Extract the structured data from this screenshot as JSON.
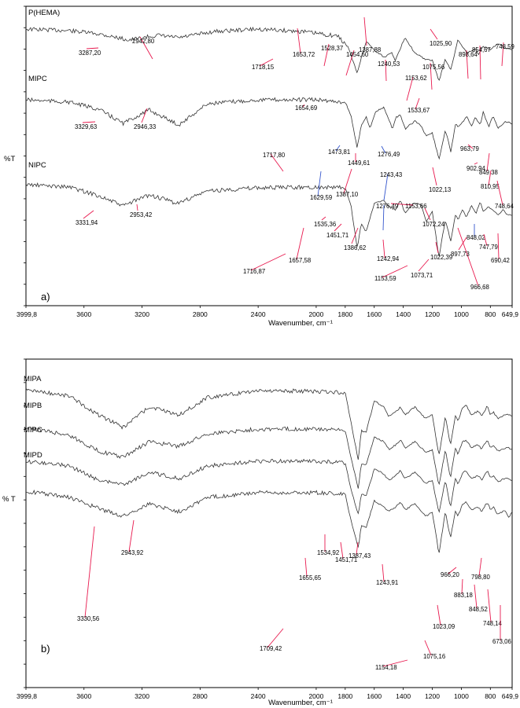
{
  "chart_data": [
    {
      "panel_id": "a",
      "panel_label": "a)",
      "type": "line",
      "xlabel": "Wavenumber, cm⁻¹",
      "ylabel": "%T",
      "x_reversed": true,
      "xlim": [
        3999.8,
        649.9
      ],
      "x_ticks": [
        "3999,8",
        "3600",
        "3200",
        "2800",
        "2400",
        "2000",
        "1800",
        "1600",
        "1400",
        "1200",
        "1000",
        "800",
        "649,9"
      ],
      "x_tick_values": [
        3999.8,
        3600,
        3200,
        2800,
        2400,
        2000,
        1800,
        1600,
        1400,
        1200,
        1000,
        800,
        649.9
      ],
      "series": [
        {
          "name": "P(HEMA)",
          "x": [
            3999.8,
            3700,
            3500,
            3287.2,
            3100,
            2942.8,
            2700,
            2400,
            2100,
            1850,
            1780,
            1718.15,
            1690,
            1653.72,
            1600,
            1528.37,
            1480,
            1454.6,
            1420,
            1387.88,
            1320,
            1240.53,
            1200,
            1153.62,
            1110,
            1075.56,
            1050,
            1025.9,
            960,
            898.64,
            880,
            854.67,
            800,
            748.59,
            700,
            649.9
          ],
          "y": [
            4,
            6,
            10,
            18,
            12,
            15,
            7,
            4,
            7,
            13,
            27,
            60,
            41,
            19,
            31,
            40,
            33,
            44,
            29,
            14,
            35,
            43,
            44,
            70,
            42,
            56,
            40,
            18,
            34,
            30,
            37,
            26,
            30,
            22,
            28,
            30
          ]
        },
        {
          "name": "MIPC",
          "x": [
            3999.8,
            3700,
            3500,
            3329.63,
            3150,
            2946.33,
            2750,
            2400,
            2000,
            1800,
            1760,
            1717.8,
            1690,
            1654.69,
            1629.59,
            1590,
            1533.67,
            1473.81,
            1449.61,
            1420,
            1387.1,
            1320,
            1276.49,
            1243.43,
            1200,
            1153.66,
            1110,
            1072.24,
            1040,
            1022.13,
            990,
            963.79,
            930,
            902.94,
            870,
            849.38,
            820,
            810.95,
            780,
            748.64,
            700,
            649.9
          ],
          "y": [
            10,
            13,
            22,
            40,
            23,
            42,
            15,
            10,
            10,
            13,
            30,
            72,
            42,
            32,
            46,
            25,
            20,
            47,
            32,
            30,
            47,
            37,
            43,
            56,
            52,
            86,
            48,
            76,
            40,
            44,
            38,
            30,
            44,
            32,
            42,
            26,
            40,
            44,
            30,
            47,
            38,
            40
          ]
        },
        {
          "name": "NIPC",
          "x": [
            3999.8,
            3700,
            3500,
            3331.94,
            3150,
            2953.42,
            2750,
            2400,
            2000,
            1800,
            1760,
            1716.87,
            1690,
            1657.58,
            1600,
            1535.36,
            1500,
            1451.71,
            1420,
            1386.62,
            1330,
            1276.49,
            1242.94,
            1200,
            1153.59,
            1110,
            1073.71,
            1040,
            1022.39,
            990,
            966.68,
            930,
            897.73,
            870,
            848.02,
            810,
            747.79,
            710,
            690.42,
            649.9
          ],
          "y": [
            8,
            11,
            22,
            35,
            21,
            32,
            16,
            12,
            11,
            12,
            35,
            90,
            57,
            68,
            32,
            28,
            36,
            40,
            28,
            45,
            32,
            33,
            55,
            42,
            100,
            52,
            80,
            46,
            53,
            40,
            50,
            35,
            44,
            30,
            42,
            36,
            46,
            40,
            45,
            48
          ]
        }
      ],
      "peak_labels": [
        {
          "text": "3287,20"
        },
        {
          "text": "2942,80"
        },
        {
          "text": "1718,15"
        },
        {
          "text": "1653,72"
        },
        {
          "text": "1528,37"
        },
        {
          "text": "1454,60"
        },
        {
          "text": "1387,88"
        },
        {
          "text": "1240,53"
        },
        {
          "text": "1153,62"
        },
        {
          "text": "1075,56"
        },
        {
          "text": "1025,90"
        },
        {
          "text": "898,64"
        },
        {
          "text": "854,67"
        },
        {
          "text": "748,59"
        },
        {
          "text": "3329,63"
        },
        {
          "text": "2946,33"
        },
        {
          "text": "1717,80"
        },
        {
          "text": "1654,69"
        },
        {
          "text": "1629,59"
        },
        {
          "text": "1533,67"
        },
        {
          "text": "1473,81"
        },
        {
          "text": "1449,61"
        },
        {
          "text": "1387,10"
        },
        {
          "text": "1276,49"
        },
        {
          "text": "1243,43"
        },
        {
          "text": "1153,66"
        },
        {
          "text": "1072,24"
        },
        {
          "text": "1022,13"
        },
        {
          "text": "963,79"
        },
        {
          "text": "902,94"
        },
        {
          "text": "849,38"
        },
        {
          "text": "810,95"
        },
        {
          "text": "748,64"
        },
        {
          "text": "3331,94"
        },
        {
          "text": "2953,42"
        },
        {
          "text": "1716,87"
        },
        {
          "text": "1657,58"
        },
        {
          "text": "1535,36"
        },
        {
          "text": "1451,71"
        },
        {
          "text": "1386,62"
        },
        {
          "text": "1276,49"
        },
        {
          "text": "1242,94"
        },
        {
          "text": "1153,59"
        },
        {
          "text": "1073,71"
        },
        {
          "text": "1022,39"
        },
        {
          "text": "966,68"
        },
        {
          "text": "897,73"
        },
        {
          "text": "848,02"
        },
        {
          "text": "747,79"
        },
        {
          "text": "690,42"
        }
      ]
    },
    {
      "panel_id": "b",
      "panel_label": "b)",
      "type": "line",
      "xlabel": "Wavenumber, cm⁻¹",
      "ylabel": "% T",
      "x_reversed": true,
      "xlim": [
        3999.8,
        649.9
      ],
      "x_ticks": [
        "3999,8",
        "3600",
        "3200",
        "2800",
        "2400",
        "2000",
        "1800",
        "1600",
        "1400",
        "1200",
        "1000",
        "800",
        "649,9"
      ],
      "x_tick_values": [
        3999.8,
        3600,
        3200,
        2800,
        2400,
        2000,
        1800,
        1600,
        1400,
        1200,
        1000,
        800,
        649.9
      ],
      "series": [
        {
          "name": "MIPA",
          "x": [
            3999.8,
            3700,
            3500,
            3330.56,
            3150,
            2943.92,
            2750,
            2400,
            2000,
            1800,
            1760,
            1709.42,
            1690,
            1655.65,
            1600,
            1534.92,
            1500,
            1451.71,
            1420,
            1387.43,
            1320,
            1243.91,
            1200,
            1154.18,
            1110,
            1075.16,
            1040,
            1023.09,
            990,
            966.2,
            930,
            883.18,
            860,
            848.52,
            820,
            798.8,
            780,
            748.14,
            700,
            673.06,
            649.9
          ],
          "y": [
            8,
            16,
            40,
            56,
            30,
            40,
            18,
            9,
            10,
            12,
            50,
            98,
            60,
            62,
            22,
            30,
            42,
            36,
            30,
            40,
            30,
            45,
            40,
            92,
            42,
            78,
            40,
            48,
            30,
            28,
            40,
            35,
            42,
            38,
            28,
            40,
            36,
            45,
            40,
            40,
            42
          ]
        },
        {
          "name": "MIPB",
          "x": [
            3999.8,
            3700,
            3500,
            3330.56,
            3150,
            2943.92,
            2750,
            2400,
            2000,
            1800,
            1760,
            1709.42,
            1690,
            1655.65,
            1600,
            1534.92,
            1500,
            1451.71,
            1420,
            1387.43,
            1320,
            1243.91,
            1200,
            1154.18,
            1110,
            1075.16,
            1040,
            1023.09,
            990,
            966.2,
            930,
            883.18,
            860,
            848.52,
            820,
            798.8,
            780,
            748.14,
            700,
            673.06,
            649.9
          ],
          "y": [
            22,
            32,
            52,
            60,
            40,
            46,
            30,
            24,
            24,
            26,
            60,
            100,
            68,
            70,
            34,
            40,
            50,
            44,
            38,
            48,
            40,
            54,
            50,
            96,
            50,
            86,
            48,
            56,
            40,
            38,
            48,
            44,
            50,
            46,
            38,
            48,
            44,
            52,
            48,
            48,
            50
          ]
        },
        {
          "name": "MIPC",
          "x": [
            3999.8,
            3700,
            3500,
            3330.56,
            3150,
            2943.92,
            2750,
            2400,
            2000,
            1800,
            1760,
            1709.42,
            1690,
            1655.65,
            1600,
            1534.92,
            1500,
            1451.71,
            1420,
            1387.43,
            1320,
            1243.91,
            1200,
            1154.18,
            1110,
            1075.16,
            1040,
            1023.09,
            990,
            966.2,
            930,
            883.18,
            860,
            848.52,
            820,
            798.8,
            780,
            748.14,
            700,
            673.06,
            649.9
          ],
          "y": [
            34,
            40,
            58,
            64,
            48,
            56,
            40,
            34,
            34,
            36,
            70,
            102,
            76,
            78,
            44,
            50,
            58,
            52,
            46,
            56,
            48,
            62,
            58,
            100,
            58,
            92,
            56,
            64,
            48,
            46,
            56,
            52,
            58,
            54,
            46,
            56,
            52,
            60,
            56,
            56,
            58
          ]
        },
        {
          "name": "MIPD",
          "x": [
            3999.8,
            3700,
            3500,
            3330.56,
            3150,
            2943.92,
            2750,
            2400,
            2000,
            1800,
            1760,
            1709.42,
            1690,
            1655.65,
            1600,
            1534.92,
            1500,
            1451.71,
            1420,
            1387.43,
            1320,
            1243.91,
            1200,
            1154.18,
            1110,
            1075.16,
            1040,
            1023.09,
            990,
            966.2,
            930,
            883.18,
            860,
            848.52,
            820,
            798.8,
            780,
            748.14,
            700,
            673.06,
            649.9
          ],
          "y": [
            40,
            48,
            62,
            72,
            56,
            66,
            48,
            42,
            42,
            44,
            78,
            112,
            84,
            86,
            52,
            60,
            66,
            60,
            54,
            64,
            56,
            72,
            66,
            120,
            66,
            100,
            64,
            72,
            56,
            54,
            64,
            60,
            66,
            62,
            54,
            64,
            60,
            70,
            64,
            74,
            66
          ]
        }
      ],
      "peak_labels": [
        {
          "text": "3330,56"
        },
        {
          "text": "2943,92"
        },
        {
          "text": "1709,42"
        },
        {
          "text": "1655,65"
        },
        {
          "text": "1534,92"
        },
        {
          "text": "1451,71"
        },
        {
          "text": "1387,43"
        },
        {
          "text": "1243,91"
        },
        {
          "text": "1154,18"
        },
        {
          "text": "1075,16"
        },
        {
          "text": "1023,09"
        },
        {
          "text": "966,20"
        },
        {
          "text": "883,18"
        },
        {
          "text": "848,52"
        },
        {
          "text": "798,80"
        },
        {
          "text": "748,14"
        },
        {
          "text": "673,06"
        }
      ]
    }
  ],
  "colors": {
    "trace": "#333333",
    "axis": "#000000",
    "leader_red": "#e8194e",
    "leader_blue": "#3355cc"
  }
}
